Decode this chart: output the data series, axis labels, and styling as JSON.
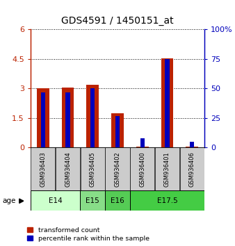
{
  "title": "GDS4591 / 1450151_at",
  "samples": [
    "GSM936403",
    "GSM936404",
    "GSM936405",
    "GSM936402",
    "GSM936400",
    "GSM936401",
    "GSM936406"
  ],
  "transformed_counts": [
    3.0,
    3.05,
    3.2,
    1.75,
    0.05,
    4.55,
    0.05
  ],
  "percentile_ranks": [
    47,
    47,
    50,
    27,
    8,
    75,
    5
  ],
  "age_groups": [
    {
      "label": "E14",
      "start": 0,
      "end": 2,
      "color": "#ccffcc"
    },
    {
      "label": "E15",
      "start": 2,
      "end": 3,
      "color": "#88dd88"
    },
    {
      "label": "E16",
      "start": 3,
      "end": 4,
      "color": "#55cc55"
    },
    {
      "label": "E17.5",
      "start": 4,
      "end": 7,
      "color": "#44cc44"
    }
  ],
  "ylim_left": [
    0,
    6
  ],
  "ylim_right": [
    0,
    100
  ],
  "yticks_left": [
    0,
    1.5,
    3.0,
    4.5,
    6.0
  ],
  "ytick_labels_left": [
    "0",
    "1.5",
    "3",
    "4.5",
    "6"
  ],
  "yticks_right": [
    0,
    25,
    50,
    75,
    100
  ],
  "ytick_labels_right": [
    "0",
    "25",
    "50",
    "75",
    "100%"
  ],
  "bar_color_red": "#bb2200",
  "bar_color_blue": "#0000bb",
  "red_bar_width": 0.5,
  "blue_bar_width": 0.18,
  "sample_box_color": "#cccccc",
  "legend_label_red": "transformed count",
  "legend_label_blue": "percentile rank within the sample",
  "age_label": "age",
  "title_fontsize": 10,
  "tick_fontsize": 8,
  "sample_fontsize": 6,
  "age_fontsize": 7.5
}
